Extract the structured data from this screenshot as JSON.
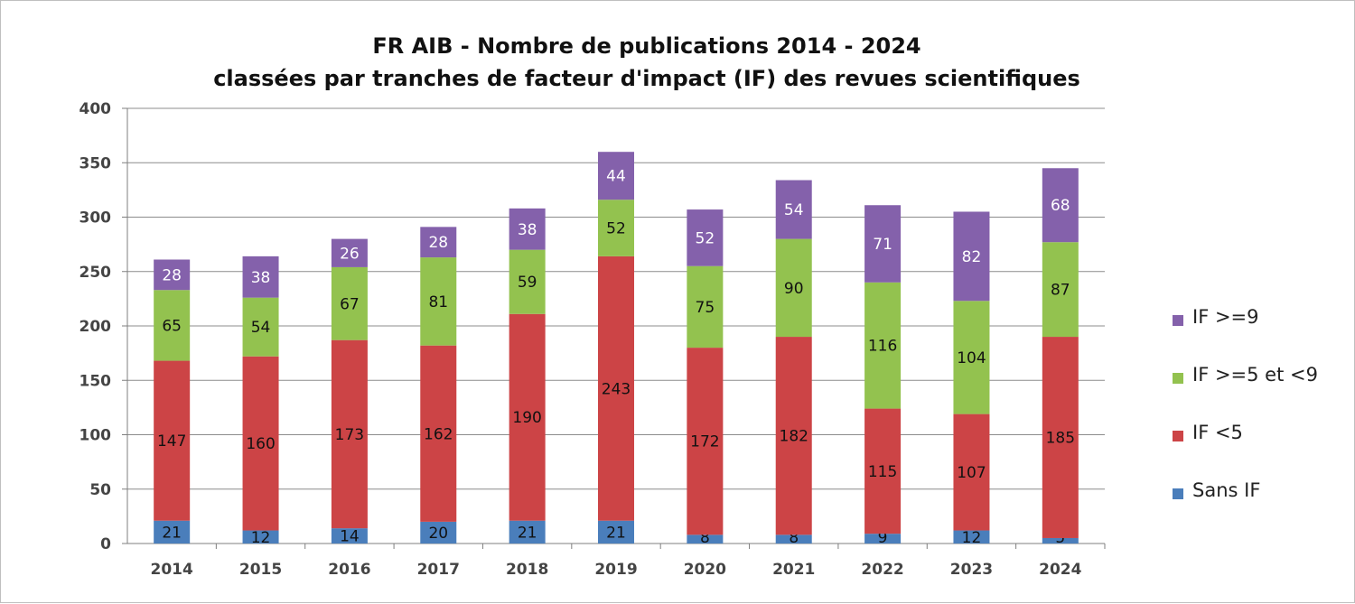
{
  "chart_data": {
    "type": "bar",
    "stacked": true,
    "title": "FR AIB  -  Nombre de publications  2014  -  2024",
    "subtitle": "classées par tranches de facteur d'impact  (IF)  des revues scientifiques",
    "categories": [
      "2014",
      "2015",
      "2016",
      "2017",
      "2018",
      "2019",
      "2020",
      "2021",
      "2022",
      "2023",
      "2024"
    ],
    "ylim": [
      0,
      400
    ],
    "yticks": [
      "0",
      "50",
      "100",
      "150",
      "200",
      "250",
      "300",
      "350",
      "400"
    ],
    "grid": true,
    "legend_position": "right",
    "series": [
      {
        "name": "Sans IF",
        "color": "#4a7ebb",
        "values": [
          21,
          12,
          14,
          20,
          21,
          21,
          8,
          8,
          9,
          12,
          5
        ]
      },
      {
        "name": "IF <5",
        "color": "#cc4446",
        "values": [
          147,
          160,
          173,
          162,
          190,
          243,
          172,
          182,
          115,
          107,
          185
        ]
      },
      {
        "name": "IF >=5 et <9",
        "color": "#93c24f",
        "values": [
          65,
          54,
          67,
          81,
          59,
          52,
          75,
          90,
          116,
          104,
          87
        ]
      },
      {
        "name": "IF >=9",
        "color": "#8461ab",
        "values": [
          28,
          38,
          26,
          28,
          38,
          44,
          52,
          54,
          71,
          82,
          68
        ]
      }
    ]
  }
}
